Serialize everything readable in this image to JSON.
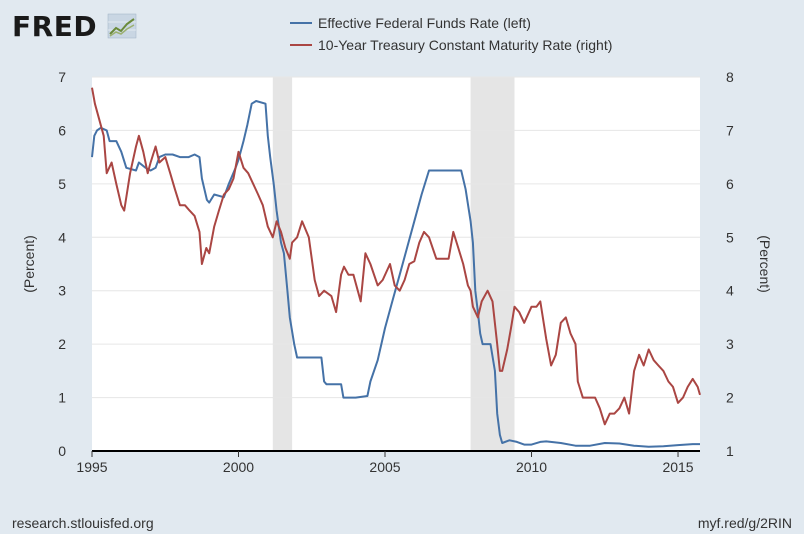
{
  "logo": {
    "text": "FRED"
  },
  "footer": {
    "left": "research.stlouisfed.org",
    "right": "myf.red/g/2RIN"
  },
  "colors": {
    "series1": "#4572a7",
    "series2": "#aa4643",
    "plot_bg": "#ffffff",
    "page_bg": "#e1e9f0",
    "recession": "#e5e5e5"
  },
  "chart_data": {
    "type": "line",
    "title": "",
    "xlabel": "",
    "ylabel_left": "(Percent)",
    "ylabel_right": "(Percent)",
    "xlim": [
      1995.0,
      2015.75
    ],
    "ylim_left": [
      0,
      7
    ],
    "ylim_right": [
      1,
      8
    ],
    "x_ticks": [
      "1995",
      "2000",
      "2005",
      "2010",
      "2015"
    ],
    "y_ticks_left": [
      "0",
      "1",
      "2",
      "3",
      "4",
      "5",
      "6",
      "7"
    ],
    "y_ticks_right": [
      "1",
      "2",
      "3",
      "4",
      "5",
      "6",
      "7",
      "8"
    ],
    "grid": true,
    "legend": "top",
    "recessions": [
      [
        2001.17,
        2001.83
      ],
      [
        2007.92,
        2009.42
      ]
    ],
    "series": [
      {
        "name": "Effective Federal Funds Rate (left)",
        "axis": "left",
        "points": [
          [
            1995.0,
            5.5
          ],
          [
            1995.08,
            5.9
          ],
          [
            1995.17,
            6.0
          ],
          [
            1995.3,
            6.05
          ],
          [
            1995.5,
            6.0
          ],
          [
            1995.6,
            5.8
          ],
          [
            1995.83,
            5.8
          ],
          [
            1996.0,
            5.6
          ],
          [
            1996.17,
            5.3
          ],
          [
            1996.5,
            5.25
          ],
          [
            1996.6,
            5.4
          ],
          [
            1996.83,
            5.3
          ],
          [
            1997.0,
            5.25
          ],
          [
            1997.17,
            5.3
          ],
          [
            1997.3,
            5.5
          ],
          [
            1997.5,
            5.55
          ],
          [
            1997.75,
            5.55
          ],
          [
            1998.0,
            5.5
          ],
          [
            1998.3,
            5.5
          ],
          [
            1998.5,
            5.55
          ],
          [
            1998.67,
            5.5
          ],
          [
            1998.75,
            5.1
          ],
          [
            1998.92,
            4.7
          ],
          [
            1999.0,
            4.65
          ],
          [
            1999.17,
            4.8
          ],
          [
            1999.5,
            4.75
          ],
          [
            1999.67,
            5.0
          ],
          [
            1999.9,
            5.3
          ],
          [
            2000.0,
            5.45
          ],
          [
            2000.17,
            5.8
          ],
          [
            2000.3,
            6.1
          ],
          [
            2000.45,
            6.5
          ],
          [
            2000.6,
            6.55
          ],
          [
            2000.92,
            6.5
          ],
          [
            2001.0,
            5.9
          ],
          [
            2001.08,
            5.5
          ],
          [
            2001.2,
            5.0
          ],
          [
            2001.3,
            4.5
          ],
          [
            2001.45,
            3.9
          ],
          [
            2001.55,
            3.7
          ],
          [
            2001.67,
            3.0
          ],
          [
            2001.75,
            2.5
          ],
          [
            2001.9,
            2.0
          ],
          [
            2002.0,
            1.75
          ],
          [
            2002.17,
            1.75
          ],
          [
            2002.83,
            1.75
          ],
          [
            2002.92,
            1.3
          ],
          [
            2003.0,
            1.25
          ],
          [
            2003.5,
            1.25
          ],
          [
            2003.58,
            1.0
          ],
          [
            2004.0,
            1.0
          ],
          [
            2004.4,
            1.03
          ],
          [
            2004.5,
            1.3
          ],
          [
            2004.75,
            1.7
          ],
          [
            2005.0,
            2.3
          ],
          [
            2005.25,
            2.8
          ],
          [
            2005.5,
            3.3
          ],
          [
            2005.75,
            3.8
          ],
          [
            2006.0,
            4.3
          ],
          [
            2006.25,
            4.8
          ],
          [
            2006.5,
            5.25
          ],
          [
            2007.0,
            5.25
          ],
          [
            2007.6,
            5.25
          ],
          [
            2007.75,
            4.9
          ],
          [
            2007.92,
            4.3
          ],
          [
            2008.0,
            3.9
          ],
          [
            2008.08,
            3.0
          ],
          [
            2008.17,
            2.6
          ],
          [
            2008.25,
            2.2
          ],
          [
            2008.33,
            2.0
          ],
          [
            2008.6,
            2.0
          ],
          [
            2008.75,
            1.5
          ],
          [
            2008.83,
            0.7
          ],
          [
            2008.92,
            0.3
          ],
          [
            2009.0,
            0.15
          ],
          [
            2009.25,
            0.2
          ],
          [
            2009.5,
            0.17
          ],
          [
            2009.75,
            0.12
          ],
          [
            2010.0,
            0.12
          ],
          [
            2010.3,
            0.17
          ],
          [
            2010.5,
            0.18
          ],
          [
            2011.0,
            0.15
          ],
          [
            2011.5,
            0.1
          ],
          [
            2012.0,
            0.1
          ],
          [
            2012.5,
            0.15
          ],
          [
            2013.0,
            0.14
          ],
          [
            2013.5,
            0.1
          ],
          [
            2014.0,
            0.08
          ],
          [
            2014.5,
            0.09
          ],
          [
            2015.0,
            0.11
          ],
          [
            2015.5,
            0.13
          ],
          [
            2015.75,
            0.13
          ]
        ]
      },
      {
        "name": "10-Year Treasury Constant Maturity Rate (right)",
        "axis": "right",
        "points": [
          [
            1995.0,
            7.8
          ],
          [
            1995.1,
            7.5
          ],
          [
            1995.25,
            7.2
          ],
          [
            1995.4,
            6.9
          ],
          [
            1995.5,
            6.2
          ],
          [
            1995.67,
            6.4
          ],
          [
            1995.83,
            6.0
          ],
          [
            1996.0,
            5.6
          ],
          [
            1996.1,
            5.5
          ],
          [
            1996.3,
            6.2
          ],
          [
            1996.5,
            6.7
          ],
          [
            1996.6,
            6.9
          ],
          [
            1996.75,
            6.6
          ],
          [
            1996.9,
            6.2
          ],
          [
            1997.0,
            6.4
          ],
          [
            1997.17,
            6.7
          ],
          [
            1997.3,
            6.4
          ],
          [
            1997.5,
            6.5
          ],
          [
            1997.67,
            6.2
          ],
          [
            1997.83,
            5.9
          ],
          [
            1998.0,
            5.6
          ],
          [
            1998.17,
            5.6
          ],
          [
            1998.33,
            5.5
          ],
          [
            1998.5,
            5.4
          ],
          [
            1998.67,
            5.1
          ],
          [
            1998.75,
            4.5
          ],
          [
            1998.9,
            4.8
          ],
          [
            1999.0,
            4.7
          ],
          [
            1999.17,
            5.2
          ],
          [
            1999.33,
            5.5
          ],
          [
            1999.5,
            5.8
          ],
          [
            1999.67,
            5.9
          ],
          [
            1999.83,
            6.1
          ],
          [
            2000.0,
            6.6
          ],
          [
            2000.17,
            6.3
          ],
          [
            2000.33,
            6.2
          ],
          [
            2000.5,
            6.0
          ],
          [
            2000.67,
            5.8
          ],
          [
            2000.83,
            5.6
          ],
          [
            2001.0,
            5.2
          ],
          [
            2001.17,
            5.0
          ],
          [
            2001.3,
            5.3
          ],
          [
            2001.45,
            5.1
          ],
          [
            2001.6,
            4.8
          ],
          [
            2001.75,
            4.6
          ],
          [
            2001.83,
            4.9
          ],
          [
            2002.0,
            5.0
          ],
          [
            2002.17,
            5.3
          ],
          [
            2002.4,
            5.0
          ],
          [
            2002.6,
            4.2
          ],
          [
            2002.75,
            3.9
          ],
          [
            2002.92,
            4.0
          ],
          [
            2003.17,
            3.9
          ],
          [
            2003.33,
            3.6
          ],
          [
            2003.5,
            4.3
          ],
          [
            2003.6,
            4.45
          ],
          [
            2003.75,
            4.3
          ],
          [
            2003.92,
            4.3
          ],
          [
            2004.17,
            3.8
          ],
          [
            2004.33,
            4.7
          ],
          [
            2004.5,
            4.5
          ],
          [
            2004.75,
            4.1
          ],
          [
            2004.92,
            4.2
          ],
          [
            2005.17,
            4.5
          ],
          [
            2005.33,
            4.1
          ],
          [
            2005.5,
            4.0
          ],
          [
            2005.67,
            4.2
          ],
          [
            2005.83,
            4.5
          ],
          [
            2006.0,
            4.55
          ],
          [
            2006.17,
            4.9
          ],
          [
            2006.33,
            5.1
          ],
          [
            2006.5,
            5.0
          ],
          [
            2006.75,
            4.6
          ],
          [
            2006.92,
            4.6
          ],
          [
            2007.17,
            4.6
          ],
          [
            2007.33,
            5.1
          ],
          [
            2007.5,
            4.8
          ],
          [
            2007.67,
            4.5
          ],
          [
            2007.83,
            4.1
          ],
          [
            2007.92,
            4.0
          ],
          [
            2008.0,
            3.7
          ],
          [
            2008.17,
            3.5
          ],
          [
            2008.3,
            3.8
          ],
          [
            2008.5,
            4.0
          ],
          [
            2008.67,
            3.8
          ],
          [
            2008.83,
            3.0
          ],
          [
            2008.92,
            2.5
          ],
          [
            2009.0,
            2.5
          ],
          [
            2009.17,
            2.9
          ],
          [
            2009.3,
            3.3
          ],
          [
            2009.42,
            3.7
          ],
          [
            2009.58,
            3.6
          ],
          [
            2009.75,
            3.4
          ],
          [
            2010.0,
            3.7
          ],
          [
            2010.17,
            3.7
          ],
          [
            2010.3,
            3.8
          ],
          [
            2010.5,
            3.1
          ],
          [
            2010.67,
            2.6
          ],
          [
            2010.83,
            2.8
          ],
          [
            2011.0,
            3.4
          ],
          [
            2011.17,
            3.5
          ],
          [
            2011.33,
            3.2
          ],
          [
            2011.5,
            3.0
          ],
          [
            2011.58,
            2.3
          ],
          [
            2011.75,
            2.0
          ],
          [
            2011.92,
            2.0
          ],
          [
            2012.17,
            2.0
          ],
          [
            2012.33,
            1.8
          ],
          [
            2012.5,
            1.5
          ],
          [
            2012.67,
            1.7
          ],
          [
            2012.83,
            1.7
          ],
          [
            2013.0,
            1.8
          ],
          [
            2013.17,
            2.0
          ],
          [
            2013.33,
            1.7
          ],
          [
            2013.5,
            2.5
          ],
          [
            2013.67,
            2.8
          ],
          [
            2013.83,
            2.6
          ],
          [
            2014.0,
            2.9
          ],
          [
            2014.17,
            2.7
          ],
          [
            2014.33,
            2.6
          ],
          [
            2014.5,
            2.5
          ],
          [
            2014.67,
            2.3
          ],
          [
            2014.83,
            2.2
          ],
          [
            2015.0,
            1.9
          ],
          [
            2015.17,
            2.0
          ],
          [
            2015.33,
            2.2
          ],
          [
            2015.5,
            2.35
          ],
          [
            2015.67,
            2.2
          ],
          [
            2015.75,
            2.05
          ]
        ]
      }
    ]
  }
}
